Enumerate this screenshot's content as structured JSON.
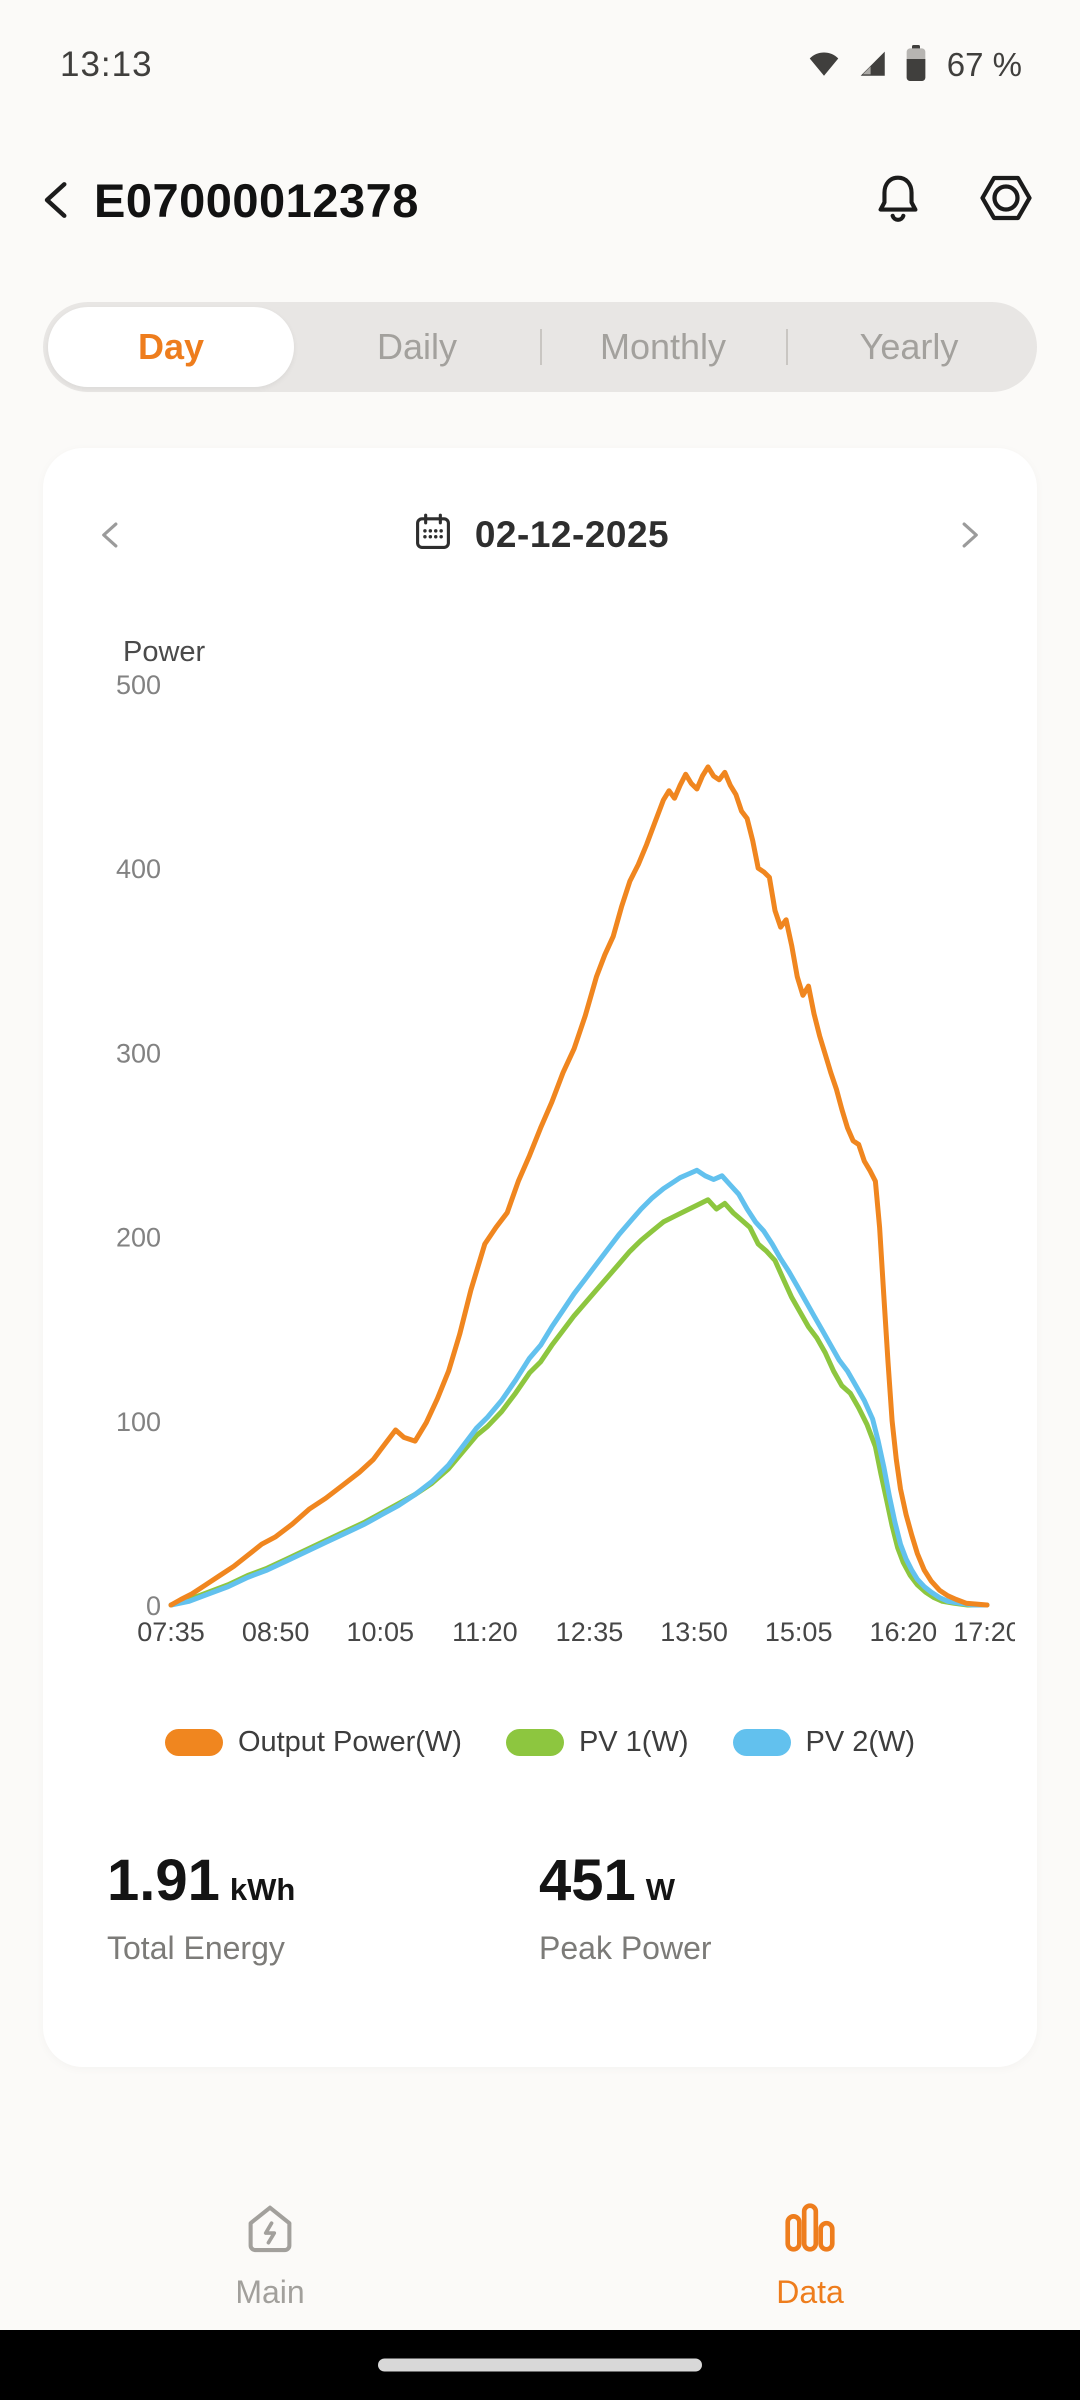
{
  "status_bar": {
    "time": "13:13",
    "battery_pct": "67 %"
  },
  "header": {
    "title": "E07000012378"
  },
  "tabs": {
    "items": [
      {
        "label": "Day",
        "selected": true
      },
      {
        "label": "Daily",
        "selected": false
      },
      {
        "label": "Monthly",
        "selected": false
      },
      {
        "label": "Yearly",
        "selected": false
      }
    ]
  },
  "date_nav": {
    "date": "02-12-2025"
  },
  "chart_data": {
    "type": "line",
    "title": "",
    "ylabel": "Power",
    "xlabel": "",
    "ylim": [
      0,
      500
    ],
    "xlim": [
      455,
      1040
    ],
    "yticks": [
      0,
      100,
      200,
      300,
      400,
      500
    ],
    "xtick_labels": [
      "07:35",
      "08:50",
      "10:05",
      "11:20",
      "12:35",
      "13:50",
      "15:05",
      "16:20",
      "17:20"
    ],
    "xtick_minutes": [
      455,
      530,
      605,
      680,
      755,
      830,
      905,
      980,
      1040
    ],
    "grid": false,
    "legend_position": "bottom",
    "series": [
      {
        "name": "Output Power(W)",
        "color": "#f0861f",
        "points": [
          [
            455,
            0
          ],
          [
            462,
            3
          ],
          [
            470,
            6
          ],
          [
            480,
            11
          ],
          [
            490,
            16
          ],
          [
            500,
            21
          ],
          [
            510,
            27
          ],
          [
            520,
            33
          ],
          [
            530,
            37
          ],
          [
            542,
            44
          ],
          [
            554,
            52
          ],
          [
            566,
            58
          ],
          [
            578,
            65
          ],
          [
            590,
            72
          ],
          [
            600,
            79
          ],
          [
            608,
            87
          ],
          [
            616,
            95
          ],
          [
            622,
            91
          ],
          [
            630,
            89
          ],
          [
            638,
            99
          ],
          [
            646,
            112
          ],
          [
            654,
            127
          ],
          [
            662,
            147
          ],
          [
            670,
            171
          ],
          [
            680,
            196
          ],
          [
            688,
            205
          ],
          [
            696,
            213
          ],
          [
            704,
            230
          ],
          [
            712,
            244
          ],
          [
            720,
            259
          ],
          [
            728,
            273
          ],
          [
            736,
            289
          ],
          [
            744,
            302
          ],
          [
            752,
            320
          ],
          [
            760,
            341
          ],
          [
            766,
            353
          ],
          [
            772,
            363
          ],
          [
            778,
            379
          ],
          [
            784,
            393
          ],
          [
            790,
            402
          ],
          [
            796,
            413
          ],
          [
            802,
            425
          ],
          [
            808,
            437
          ],
          [
            812,
            442
          ],
          [
            816,
            438
          ],
          [
            820,
            445
          ],
          [
            824,
            451
          ],
          [
            828,
            446
          ],
          [
            832,
            443
          ],
          [
            836,
            450
          ],
          [
            840,
            455
          ],
          [
            844,
            450
          ],
          [
            848,
            448
          ],
          [
            852,
            452
          ],
          [
            856,
            445
          ],
          [
            860,
            440
          ],
          [
            864,
            431
          ],
          [
            868,
            427
          ],
          [
            872,
            415
          ],
          [
            876,
            400
          ],
          [
            880,
            398
          ],
          [
            884,
            395
          ],
          [
            888,
            377
          ],
          [
            892,
            368
          ],
          [
            896,
            372
          ],
          [
            900,
            358
          ],
          [
            904,
            341
          ],
          [
            908,
            331
          ],
          [
            912,
            336
          ],
          [
            916,
            321
          ],
          [
            920,
            309
          ],
          [
            924,
            299
          ],
          [
            928,
            289
          ],
          [
            932,
            280
          ],
          [
            936,
            269
          ],
          [
            940,
            259
          ],
          [
            944,
            252
          ],
          [
            948,
            250
          ],
          [
            952,
            241
          ],
          [
            956,
            236
          ],
          [
            960,
            230
          ],
          [
            963,
            205
          ],
          [
            966,
            168
          ],
          [
            969,
            132
          ],
          [
            972,
            100
          ],
          [
            975,
            79
          ],
          [
            978,
            63
          ],
          [
            982,
            49
          ],
          [
            986,
            38
          ],
          [
            990,
            28
          ],
          [
            995,
            19
          ],
          [
            1000,
            13
          ],
          [
            1006,
            8
          ],
          [
            1012,
            5
          ],
          [
            1018,
            3
          ],
          [
            1025,
            1
          ],
          [
            1040,
            0
          ]
        ]
      },
      {
        "name": "PV 1(W)",
        "color": "#8dc63f",
        "points": [
          [
            455,
            0
          ],
          [
            468,
            3
          ],
          [
            482,
            7
          ],
          [
            496,
            11
          ],
          [
            510,
            16
          ],
          [
            524,
            20
          ],
          [
            538,
            25
          ],
          [
            552,
            30
          ],
          [
            566,
            35
          ],
          [
            580,
            40
          ],
          [
            594,
            45
          ],
          [
            606,
            50
          ],
          [
            618,
            55
          ],
          [
            630,
            60
          ],
          [
            642,
            66
          ],
          [
            654,
            74
          ],
          [
            664,
            83
          ],
          [
            674,
            92
          ],
          [
            682,
            97
          ],
          [
            692,
            105
          ],
          [
            702,
            115
          ],
          [
            712,
            126
          ],
          [
            720,
            132
          ],
          [
            728,
            141
          ],
          [
            736,
            149
          ],
          [
            744,
            157
          ],
          [
            752,
            164
          ],
          [
            760,
            171
          ],
          [
            768,
            178
          ],
          [
            776,
            185
          ],
          [
            784,
            192
          ],
          [
            792,
            198
          ],
          [
            800,
            203
          ],
          [
            808,
            208
          ],
          [
            816,
            211
          ],
          [
            824,
            214
          ],
          [
            832,
            217
          ],
          [
            840,
            220
          ],
          [
            846,
            215
          ],
          [
            852,
            218
          ],
          [
            858,
            213
          ],
          [
            864,
            209
          ],
          [
            870,
            205
          ],
          [
            876,
            196
          ],
          [
            882,
            192
          ],
          [
            888,
            187
          ],
          [
            894,
            177
          ],
          [
            900,
            167
          ],
          [
            906,
            159
          ],
          [
            912,
            151
          ],
          [
            918,
            145
          ],
          [
            924,
            137
          ],
          [
            930,
            127
          ],
          [
            936,
            119
          ],
          [
            942,
            115
          ],
          [
            948,
            107
          ],
          [
            954,
            98
          ],
          [
            960,
            86
          ],
          [
            964,
            71
          ],
          [
            968,
            57
          ],
          [
            972,
            43
          ],
          [
            976,
            31
          ],
          [
            980,
            23
          ],
          [
            985,
            16
          ],
          [
            990,
            11
          ],
          [
            996,
            7
          ],
          [
            1002,
            4
          ],
          [
            1008,
            2
          ],
          [
            1016,
            1
          ],
          [
            1026,
            0
          ],
          [
            1040,
            0
          ]
        ]
      },
      {
        "name": "PV 2(W)",
        "color": "#62c1ee",
        "points": [
          [
            455,
            0
          ],
          [
            468,
            2
          ],
          [
            482,
            6
          ],
          [
            496,
            10
          ],
          [
            510,
            15
          ],
          [
            524,
            19
          ],
          [
            538,
            24
          ],
          [
            552,
            29
          ],
          [
            566,
            34
          ],
          [
            580,
            39
          ],
          [
            594,
            44
          ],
          [
            606,
            49
          ],
          [
            618,
            54
          ],
          [
            630,
            60
          ],
          [
            642,
            67
          ],
          [
            654,
            76
          ],
          [
            664,
            86
          ],
          [
            674,
            96
          ],
          [
            682,
            102
          ],
          [
            692,
            111
          ],
          [
            702,
            122
          ],
          [
            712,
            134
          ],
          [
            720,
            141
          ],
          [
            728,
            151
          ],
          [
            736,
            160
          ],
          [
            744,
            169
          ],
          [
            752,
            177
          ],
          [
            760,
            185
          ],
          [
            768,
            193
          ],
          [
            776,
            201
          ],
          [
            784,
            208
          ],
          [
            792,
            215
          ],
          [
            800,
            221
          ],
          [
            808,
            226
          ],
          [
            814,
            229
          ],
          [
            820,
            232
          ],
          [
            826,
            234
          ],
          [
            832,
            236
          ],
          [
            838,
            233
          ],
          [
            844,
            231
          ],
          [
            850,
            233
          ],
          [
            856,
            228
          ],
          [
            862,
            223
          ],
          [
            868,
            215
          ],
          [
            874,
            208
          ],
          [
            880,
            203
          ],
          [
            886,
            196
          ],
          [
            892,
            188
          ],
          [
            898,
            181
          ],
          [
            904,
            173
          ],
          [
            910,
            165
          ],
          [
            916,
            157
          ],
          [
            922,
            149
          ],
          [
            928,
            141
          ],
          [
            934,
            133
          ],
          [
            940,
            127
          ],
          [
            946,
            119
          ],
          [
            952,
            111
          ],
          [
            958,
            101
          ],
          [
            962,
            89
          ],
          [
            966,
            75
          ],
          [
            970,
            59
          ],
          [
            974,
            45
          ],
          [
            978,
            33
          ],
          [
            982,
            25
          ],
          [
            986,
            19
          ],
          [
            990,
            14
          ],
          [
            995,
            10
          ],
          [
            1000,
            7
          ],
          [
            1006,
            4
          ],
          [
            1012,
            2
          ],
          [
            1020,
            1
          ],
          [
            1030,
            0
          ],
          [
            1040,
            0
          ]
        ]
      }
    ]
  },
  "stats": {
    "total_energy": {
      "value": "1.91",
      "unit": "kWh",
      "label": "Total Energy"
    },
    "peak_power": {
      "value": "451",
      "unit": "W",
      "label": "Peak Power"
    }
  },
  "bottom_nav": {
    "items": [
      {
        "label": "Main",
        "active": false
      },
      {
        "label": "Data",
        "active": true
      }
    ]
  },
  "colors": {
    "accent_orange": "#ee7d1d",
    "output_power": "#f0861f",
    "pv1_green": "#8dc63f",
    "pv2_blue": "#62c1ee",
    "tab_bg": "#e8e6e4",
    "page_bg": "#fbfaf8"
  }
}
